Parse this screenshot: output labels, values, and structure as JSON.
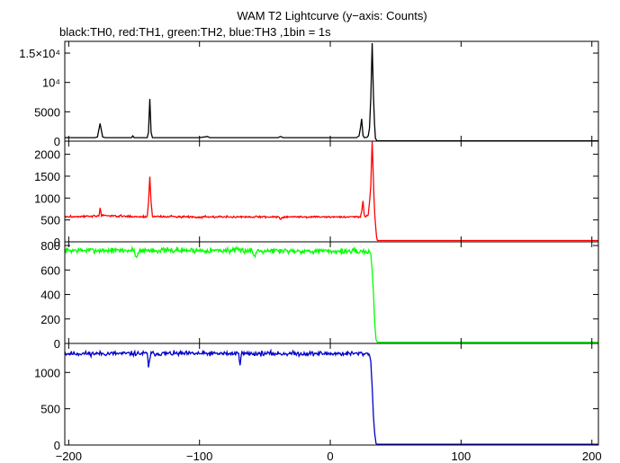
{
  "chart_data": {
    "type": "line",
    "title": "WAM T2 Lightcurve (y−axis: Counts)",
    "subtitle": "black:TH0, red:TH1, green:TH2, blue:TH3 ,1bin = 1s",
    "xlim": [
      -203,
      205
    ],
    "x_ticks": [
      -200,
      -100,
      0,
      100,
      200
    ],
    "x_tick_labels": [
      "−200",
      "−100",
      "0",
      "100",
      "200"
    ],
    "grid": false,
    "panels": [
      {
        "name": "TH0",
        "color": "#000000",
        "ylim": [
          0,
          17000
        ],
        "y_ticks": [
          0,
          5000,
          10000,
          15000
        ],
        "y_tick_labels": [
          "0",
          "5000",
          "10⁴",
          "1.5×10⁴"
        ],
        "points": [
          [
            -203,
            600
          ],
          [
            -180,
            600
          ],
          [
            -178,
            700
          ],
          [
            -176,
            3000
          ],
          [
            -174,
            700
          ],
          [
            -172,
            600
          ],
          [
            -152,
            600
          ],
          [
            -151,
            900
          ],
          [
            -150,
            600
          ],
          [
            -140,
            600
          ],
          [
            -139,
            1500
          ],
          [
            -138,
            7200
          ],
          [
            -137,
            1500
          ],
          [
            -136,
            600
          ],
          [
            -100,
            600
          ],
          [
            -94,
            800
          ],
          [
            -92,
            600
          ],
          [
            -40,
            600
          ],
          [
            -38,
            800
          ],
          [
            -36,
            600
          ],
          [
            20,
            600
          ],
          [
            22,
            900
          ],
          [
            23,
            2200
          ],
          [
            24,
            3800
          ],
          [
            25,
            1000
          ],
          [
            26,
            600
          ],
          [
            28,
            650
          ],
          [
            29,
            900
          ],
          [
            30,
            2200
          ],
          [
            31,
            7500
          ],
          [
            32,
            16700
          ],
          [
            33,
            7800
          ],
          [
            33.8,
            3000
          ],
          [
            34.5,
            500
          ],
          [
            35.5,
            100
          ],
          [
            36,
            40
          ],
          [
            205,
            40
          ]
        ]
      },
      {
        "name": "TH1",
        "color": "#ff0000",
        "ylim": [
          0,
          2300
        ],
        "y_ticks": [
          0,
          500,
          1000,
          1500,
          2000
        ],
        "y_tick_labels": [
          "0",
          "500",
          "1000",
          "1500",
          "2000"
        ],
        "base": 570,
        "noise": 22,
        "seed": 3,
        "points": [
          [
            -203,
            570
          ],
          [
            -177,
            590
          ],
          [
            -176,
            760
          ],
          [
            -175,
            600
          ],
          [
            -140,
            570
          ],
          [
            -139,
            900
          ],
          [
            -138,
            1480
          ],
          [
            -137,
            900
          ],
          [
            -136,
            580
          ],
          [
            -100,
            570
          ],
          [
            -40,
            570
          ],
          [
            -38,
            530
          ],
          [
            -36,
            570
          ],
          [
            23,
            570
          ],
          [
            24,
            700
          ],
          [
            25,
            930
          ],
          [
            26,
            620
          ],
          [
            27,
            580
          ],
          [
            29,
            620
          ],
          [
            30,
            900
          ],
          [
            31,
            1300
          ],
          [
            32,
            2300
          ],
          [
            33,
            1400
          ],
          [
            33.8,
            700
          ],
          [
            34.8,
            300
          ],
          [
            35.6,
            60
          ],
          [
            36,
            30
          ],
          [
            205,
            30
          ]
        ]
      },
      {
        "name": "TH2",
        "color": "#00ff00",
        "ylim": [
          0,
          830
        ],
        "y_ticks": [
          0,
          200,
          400,
          600,
          800
        ],
        "y_tick_labels": [
          "0",
          "200",
          "400",
          "600",
          "800"
        ],
        "base": 760,
        "noise": 22,
        "seed": 7,
        "points": [
          [
            -203,
            760
          ],
          [
            -150,
            760
          ],
          [
            -148,
            700
          ],
          [
            -146,
            760
          ],
          [
            -60,
            760
          ],
          [
            -58,
            710
          ],
          [
            -56,
            760
          ],
          [
            30,
            750
          ],
          [
            31,
            730
          ],
          [
            32,
            600
          ],
          [
            33,
            420
          ],
          [
            34,
            160
          ],
          [
            35,
            30
          ],
          [
            36,
            10
          ],
          [
            205,
            10
          ]
        ]
      },
      {
        "name": "TH3",
        "color": "#0000cc",
        "ylim": [
          0,
          1400
        ],
        "y_ticks": [
          0,
          500,
          1000
        ],
        "y_tick_labels": [
          "0",
          "500",
          "1000"
        ],
        "base": 1260,
        "noise": 32,
        "seed": 11,
        "points": [
          [
            -203,
            1260
          ],
          [
            -140,
            1260
          ],
          [
            -139,
            1080
          ],
          [
            -138,
            1200
          ],
          [
            -137,
            1260
          ],
          [
            -70,
            1260
          ],
          [
            -69,
            1130
          ],
          [
            -68,
            1260
          ],
          [
            29,
            1260
          ],
          [
            30,
            1240
          ],
          [
            31,
            1150
          ],
          [
            32,
            800
          ],
          [
            33,
            400
          ],
          [
            34,
            150
          ],
          [
            35,
            20
          ],
          [
            36,
            10
          ],
          [
            205,
            10
          ]
        ]
      }
    ]
  }
}
